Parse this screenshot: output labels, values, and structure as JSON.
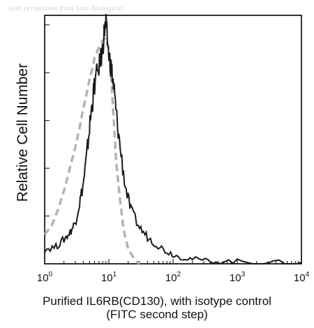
{
  "watermark": "with permission from Sino Biological",
  "chart_data": {
    "type": "line",
    "title": "",
    "ylabel": "Relative Cell Number",
    "xlabel": "Purified IL6RB(CD130), with isotype control",
    "xlabel_line2": "(FITC second step)",
    "x_scale": "log",
    "xlim": [
      1,
      10000
    ],
    "ylim": [
      0,
      100
    ],
    "x_ticks": [
      {
        "value": 1,
        "label": "10",
        "exp": "0"
      },
      {
        "value": 10,
        "label": "10",
        "exp": "1"
      },
      {
        "value": 100,
        "label": "10",
        "exp": "2"
      },
      {
        "value": 1000,
        "label": "10",
        "exp": "3"
      },
      {
        "value": 10000,
        "label": "10",
        "exp": "4"
      }
    ],
    "series": [
      {
        "style": "dashed",
        "color": "#b3b3b3",
        "points": [
          [
            1.0,
            12
          ],
          [
            1.3,
            16
          ],
          [
            1.6,
            22
          ],
          [
            2.0,
            30
          ],
          [
            2.5,
            40
          ],
          [
            3.0,
            48
          ],
          [
            3.5,
            56
          ],
          [
            4.0,
            64
          ],
          [
            4.5,
            70
          ],
          [
            5.0,
            76
          ],
          [
            5.5,
            80
          ],
          [
            6.0,
            85
          ],
          [
            7.0,
            89
          ],
          [
            8.0,
            92
          ],
          [
            9.0,
            93
          ],
          [
            10.0,
            88
          ],
          [
            11.0,
            75
          ],
          [
            12.0,
            58
          ],
          [
            13.0,
            42
          ],
          [
            15.0,
            26
          ],
          [
            17.0,
            14
          ],
          [
            20.0,
            6
          ],
          [
            25.0,
            2
          ],
          [
            30.0,
            0
          ]
        ]
      },
      {
        "style": "solid",
        "color": "#1a1a1a",
        "points": [
          [
            1.0,
            6
          ],
          [
            1.5,
            7
          ],
          [
            2.0,
            10
          ],
          [
            2.5,
            13
          ],
          [
            3.0,
            17
          ],
          [
            3.5,
            25
          ],
          [
            4.0,
            33
          ],
          [
            4.5,
            44
          ],
          [
            5.0,
            56
          ],
          [
            5.5,
            66
          ],
          [
            6.0,
            74
          ],
          [
            7.0,
            81
          ],
          [
            8.0,
            88
          ],
          [
            8.5,
            96
          ],
          [
            9.0,
            98
          ],
          [
            10.0,
            86
          ],
          [
            11.0,
            80
          ],
          [
            12.0,
            72
          ],
          [
            13.0,
            62
          ],
          [
            15.0,
            48
          ],
          [
            18.0,
            32
          ],
          [
            22.0,
            22
          ],
          [
            30.0,
            15
          ],
          [
            40.0,
            11
          ],
          [
            55.0,
            8
          ],
          [
            80.0,
            5
          ],
          [
            120.0,
            3
          ],
          [
            200.0,
            2
          ],
          [
            400.0,
            1
          ],
          [
            1000.0,
            1
          ],
          [
            3000.0,
            0.5
          ],
          [
            10000.0,
            0.5
          ]
        ]
      }
    ]
  }
}
